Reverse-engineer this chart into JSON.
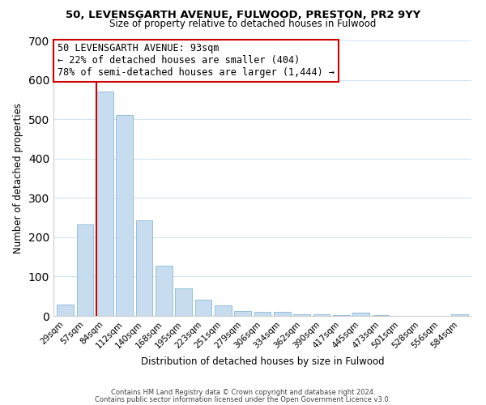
{
  "title1": "50, LEVENSGARTH AVENUE, FULWOOD, PRESTON, PR2 9YY",
  "title2": "Size of property relative to detached houses in Fulwood",
  "xlabel": "Distribution of detached houses by size in Fulwood",
  "ylabel": "Number of detached properties",
  "bar_labels": [
    "29sqm",
    "57sqm",
    "84sqm",
    "112sqm",
    "140sqm",
    "168sqm",
    "195sqm",
    "223sqm",
    "251sqm",
    "279sqm",
    "306sqm",
    "334sqm",
    "362sqm",
    "390sqm",
    "417sqm",
    "445sqm",
    "473sqm",
    "501sqm",
    "528sqm",
    "556sqm",
    "584sqm"
  ],
  "bar_values": [
    28,
    233,
    570,
    510,
    243,
    127,
    70,
    42,
    27,
    13,
    10,
    10,
    5,
    5,
    2,
    8,
    2,
    1,
    0,
    0,
    5
  ],
  "bar_color": "#c7dcef",
  "bar_edge_color": "#8ab8d8",
  "vline_color": "#cc0000",
  "annotation_title": "50 LEVENSGARTH AVENUE: 93sqm",
  "annotation_line1": "← 22% of detached houses are smaller (404)",
  "annotation_line2": "78% of semi-detached houses are larger (1,444) →",
  "annotation_box_facecolor": "#ffffff",
  "annotation_box_edgecolor": "#cc0000",
  "ylim": [
    0,
    700
  ],
  "yticks": [
    0,
    100,
    200,
    300,
    400,
    500,
    600,
    700
  ],
  "grid_color": "#d0e4f0",
  "footer1": "Contains HM Land Registry data © Crown copyright and database right 2024.",
  "footer2": "Contains public sector information licensed under the Open Government Licence v3.0."
}
